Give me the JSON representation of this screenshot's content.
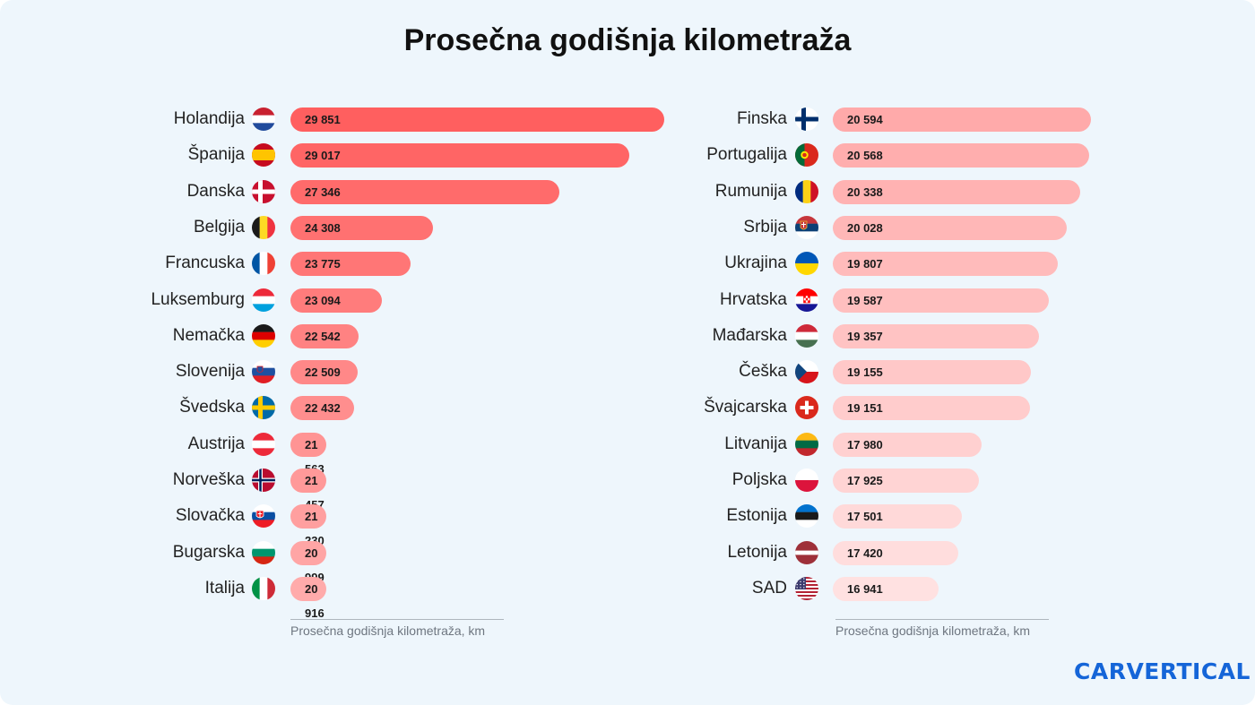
{
  "title": "Prosečna godišnja kilometraža",
  "logo_text": "CARVERTICAL",
  "colors": {
    "background": "#eef6fc",
    "bar_left_max": "#ff5f5f",
    "bar_left_min": "#ffabab",
    "bar_right_max": "#ffaaaa",
    "bar_right_min": "#ffe1e1",
    "logo": "#1565d8"
  },
  "chart_data": [
    {
      "type": "bar",
      "orientation": "horizontal",
      "xlabel": "Prosečna godišnja kilometraža, km",
      "categories": [
        "Holandija",
        "Španija",
        "Danska",
        "Belgija",
        "Francuska",
        "Luksemburg",
        "Nemačka",
        "Slovenija",
        "Švedska",
        "Austrija",
        "Norveška",
        "Slovačka",
        "Bugarska",
        "Italija"
      ],
      "flags": [
        "nl-flag-icon",
        "es-flag-icon",
        "dk-flag-icon",
        "be-flag-icon",
        "fr-flag-icon",
        "lu-flag-icon",
        "de-flag-icon",
        "si-flag-icon",
        "se-flag-icon",
        "at-flag-icon",
        "no-flag-icon",
        "sk-flag-icon",
        "bg-flag-icon",
        "it-flag-icon"
      ],
      "values": [
        29851,
        29017,
        27346,
        24308,
        23775,
        23094,
        22542,
        22509,
        22432,
        21563,
        21457,
        21230,
        20999,
        20916
      ],
      "labels": [
        "29 851",
        "29 017",
        "27 346",
        "24 308",
        "23 775",
        "23 094",
        "22 542",
        "22 509",
        "22 432",
        "21 563",
        "21 457",
        "21 230",
        "20 999",
        "20 916"
      ],
      "grid": false
    },
    {
      "type": "bar",
      "orientation": "horizontal",
      "xlabel": "Prosečna godišnja kilometraža, km",
      "categories": [
        "Finska",
        "Portugalija",
        "Rumunija",
        "Srbija",
        "Ukrajina",
        "Hrvatska",
        "Mađarska",
        "Češka",
        "Švajcarska",
        "Litvanija",
        "Poljska",
        "Estonija",
        "Letonija",
        "SAD"
      ],
      "flags": [
        "fi-flag-icon",
        "pt-flag-icon",
        "ro-flag-icon",
        "rs-flag-icon",
        "ua-flag-icon",
        "hr-flag-icon",
        "hu-flag-icon",
        "cz-flag-icon",
        "ch-flag-icon",
        "lt-flag-icon",
        "pl-flag-icon",
        "ee-flag-icon",
        "lv-flag-icon",
        "us-flag-icon"
      ],
      "values": [
        20594,
        20568,
        20338,
        20028,
        19807,
        19587,
        19357,
        19155,
        19151,
        17980,
        17925,
        17501,
        17420,
        16941
      ],
      "labels": [
        "20 594",
        "20 568",
        "20 338",
        "20 028",
        "19 807",
        "19 587",
        "19 357",
        "19 155",
        "19 151",
        "17 980",
        "17 925",
        "17 501",
        "17 420",
        "16 941"
      ],
      "grid": false
    }
  ]
}
